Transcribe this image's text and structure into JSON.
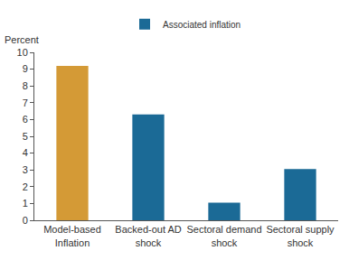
{
  "chart_data": {
    "type": "bar",
    "y_label": "Percent",
    "categories": [
      "Model-based Inflation",
      "Backed-out AD shock",
      "Sectoral demand shock",
      "Sectoral supply shock"
    ],
    "series": [
      {
        "name": "Associated inflation",
        "color": "#1b6a96",
        "values": [
          9.2,
          6.3,
          1.05,
          3.05
        ]
      }
    ],
    "colors": [
      "#d49a36",
      "#1b6a96",
      "#1b6a96",
      "#1b6a96"
    ],
    "ylim": [
      0,
      10
    ],
    "yticks": [
      0,
      1,
      2,
      3,
      4,
      5,
      6,
      7,
      8,
      9,
      10
    ],
    "grid": false,
    "legend": "top"
  }
}
